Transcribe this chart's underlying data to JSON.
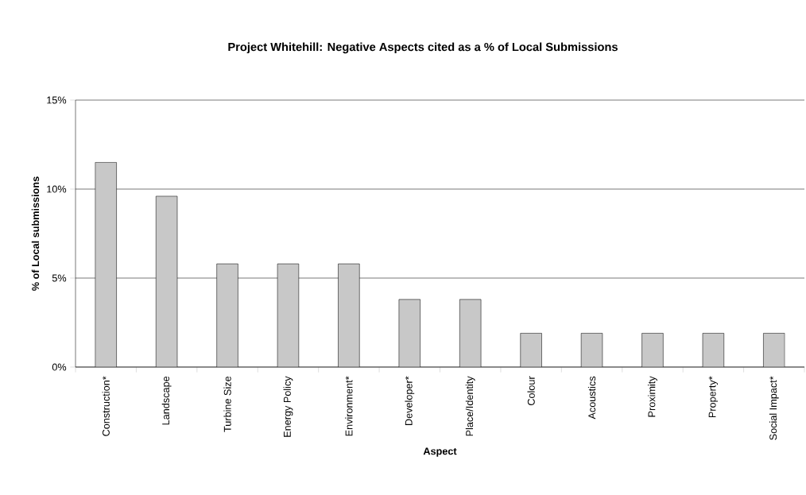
{
  "chart_data": {
    "type": "bar",
    "title": "Project Whitehill: Negative Aspects cited as a % of Local Submissions",
    "xlabel": "Aspect",
    "ylabel": "% of Local submissions",
    "categories": [
      "Construction*",
      "Landscape",
      "Turbine Size",
      "Energy Policy",
      "Environment*",
      "Developer*",
      "Place/Identity",
      "Colour",
      "Acoustics",
      "Proximity",
      "Property*",
      "Social Impact*"
    ],
    "values": [
      11.5,
      9.6,
      5.8,
      5.8,
      5.8,
      3.8,
      3.8,
      1.9,
      1.9,
      1.9,
      1.9,
      1.9
    ],
    "color": "#c8c8c8",
    "ylim": [
      0,
      15
    ],
    "yticks": [
      {
        "value": 0,
        "label": "0%"
      },
      {
        "value": 5,
        "label": "5%"
      },
      {
        "value": 10,
        "label": "10%"
      },
      {
        "value": 15,
        "label": "15%"
      }
    ],
    "grid": "y"
  }
}
